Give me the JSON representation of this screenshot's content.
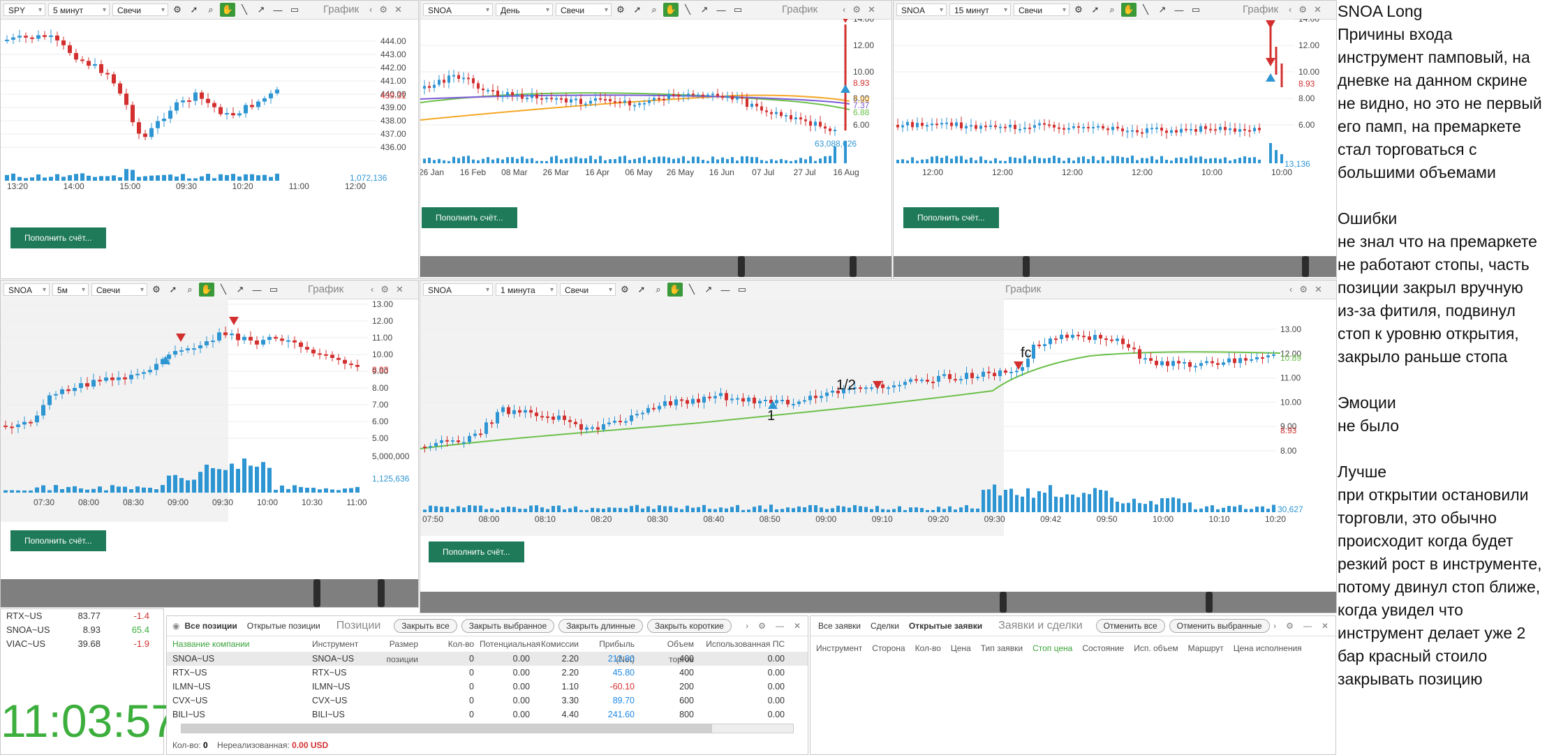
{
  "colors": {
    "up": "#2e95d3",
    "down": "#d32f2f",
    "volume": "#2e95d3",
    "ema_green": "#6cc04a",
    "line_orange": "#f5a623",
    "line_purple": "#7a5bd6",
    "deposit": "#1f7a5a",
    "clock": "#3cae3c"
  },
  "common": {
    "deposit_label": "Пополнить счёт...",
    "chart_label": "График"
  },
  "panels": {
    "p1": {
      "ticker": "SPY",
      "interval": "5 минут",
      "type": "Свечи",
      "yticks": [
        "444.00",
        "443.00",
        "442.00",
        "441.00",
        "440.00",
        "439.00",
        "438.00",
        "437.00",
        "436.00"
      ],
      "price_tag": "439.31",
      "vol_tag": "1,072,136",
      "xticks": [
        "13:20",
        "14:00",
        "15:00",
        "09:30",
        "10:20",
        "11:00",
        "12:00"
      ]
    },
    "p2": {
      "ticker": "SNOA",
      "interval": "День",
      "type": "Свечи",
      "yticks": [
        "14.00",
        "12.00",
        "10.00",
        "8.00",
        "6.00"
      ],
      "price_tags": [
        "8.93",
        "7.59",
        "7.37",
        "6.88"
      ],
      "vol_tag": "63,088,626",
      "xticks": [
        "26 Jan",
        "16 Feb",
        "08 Mar",
        "26 Mar",
        "16 Apr",
        "06 May",
        "26 May",
        "16 Jun",
        "07 Jul",
        "27 Jul",
        "16 Aug"
      ]
    },
    "p3": {
      "ticker": "SNOA",
      "interval": "15 минут",
      "type": "Свечи",
      "yticks": [
        "14.00",
        "12.00",
        "10.00",
        "8.00",
        "6.00"
      ],
      "price_tag": "8.93",
      "vol_tag": "13,136",
      "xticks": [
        "12:00",
        "12:00",
        "12:00",
        "12:00",
        "10:00",
        "10:00"
      ]
    },
    "p4": {
      "ticker": "SNOA",
      "interval": "5м",
      "type": "Свечи",
      "yticks": [
        "13.00",
        "12.00",
        "11.00",
        "10.00",
        "9.00",
        "8.00",
        "7.00",
        "6.00",
        "5.00"
      ],
      "price_tag": "8.93",
      "vol_ticks": [
        "5,000,000"
      ],
      "vol_tag": "1,125,636",
      "xticks": [
        "07:30",
        "08:00",
        "08:30",
        "09:00",
        "09:30",
        "10:00",
        "10:30",
        "11:00"
      ]
    },
    "p5": {
      "ticker": "SNOA",
      "interval": "1 минута",
      "type": "Свечи",
      "yticks": [
        "13.00",
        "12.00",
        "11.00",
        "10.00",
        "9.00",
        "8.00"
      ],
      "price_tags": [
        "10.89",
        "8.93"
      ],
      "vol_tag": "30,627",
      "annotations": [
        "1",
        "1/2",
        "fc"
      ],
      "xticks": [
        "07:50",
        "08:00",
        "08:10",
        "08:20",
        "08:30",
        "08:40",
        "08:50",
        "09:00",
        "09:10",
        "09:20",
        "09:30",
        "09:42",
        "09:50",
        "10:00",
        "10:10",
        "10:20"
      ]
    }
  },
  "watchlist": [
    {
      "sym": "RTX~US",
      "price": "83.77",
      "chg": "-1.4"
    },
    {
      "sym": "SNOA~US",
      "price": "8.93",
      "chg": "65.4"
    },
    {
      "sym": "VIAC~US",
      "price": "39.68",
      "chg": "-1.9"
    }
  ],
  "clock": "11:03:57",
  "positions": {
    "tabs": [
      "Все позиции",
      "Открытые позиции"
    ],
    "title": "Позиции",
    "buttons": [
      "Закрыть все",
      "Закрыть выбранное",
      "Закрыть длинные",
      "Закрыть короткие"
    ],
    "headers": [
      "Название компании",
      "Инструмент",
      "Размер позиции",
      "Кол-во",
      "Потенциальная",
      "Комиссии",
      "Прибыль (Net)",
      "Объем торгов",
      "Использованная ПС"
    ],
    "rows": [
      {
        "name": "SNOA~US",
        "inst": "SNOA~US",
        "size": "",
        "qty": "0",
        "pot": "0.00",
        "comm": "2.20",
        "profit": "212.80",
        "vol": "400",
        "ps": "0.00",
        "sign": "pos"
      },
      {
        "name": "RTX~US",
        "inst": "RTX~US",
        "size": "",
        "qty": "0",
        "pot": "0.00",
        "comm": "2.20",
        "profit": "45.80",
        "vol": "400",
        "ps": "0.00",
        "sign": "pos"
      },
      {
        "name": "ILMN~US",
        "inst": "ILMN~US",
        "size": "",
        "qty": "0",
        "pot": "0.00",
        "comm": "1.10",
        "profit": "-60.10",
        "vol": "200",
        "ps": "0.00",
        "sign": "neg"
      },
      {
        "name": "CVX~US",
        "inst": "CVX~US",
        "size": "",
        "qty": "0",
        "pot": "0.00",
        "comm": "3.30",
        "profit": "89.70",
        "vol": "600",
        "ps": "0.00",
        "sign": "pos"
      },
      {
        "name": "BILI~US",
        "inst": "BILI~US",
        "size": "",
        "qty": "0",
        "pot": "0.00",
        "comm": "4.40",
        "profit": "241.60",
        "vol": "800",
        "ps": "0.00",
        "sign": "pos"
      }
    ],
    "footer_qty_label": "Кол-во:",
    "footer_qty": "0",
    "footer_unreal_label": "Нереализованная:",
    "footer_unreal": "0.00 USD"
  },
  "orders": {
    "tabs": [
      "Все заявки",
      "Сделки",
      "Открытые заявки"
    ],
    "title": "Заявки и сделки",
    "buttons": [
      "Отменить все",
      "Отменить выбранные"
    ],
    "headers": [
      "Инструмент",
      "Сторона",
      "Кол-во",
      "Цена",
      "Тип заявки",
      "Стоп цена",
      "Состояние",
      "Исп. объем",
      "Маршрут",
      "Цена исполнения"
    ]
  },
  "notes": [
    "SNOA Long",
    "Причины входа",
    "инструмент памповый, на дневке на данном скрине не видно, но это не первый его памп, на премаркете стал торговаться с большими объемами",
    "",
    "Ошибки",
    "не знал что на премаркете не работают стопы, часть позиции закрыл вручную из-за фитиля, подвинул стоп к уровню открытия, закрыло раньше стопа",
    "",
    "Эмоции",
    "не было",
    "",
    "Лучше",
    "при открытии остановили торговли, это обычно происходит когда будет резкий рост в инструменте, потому двинул стоп ближе, когда увидел что инструмент делает уже 2 бар красный стоило закрывать позицию"
  ]
}
